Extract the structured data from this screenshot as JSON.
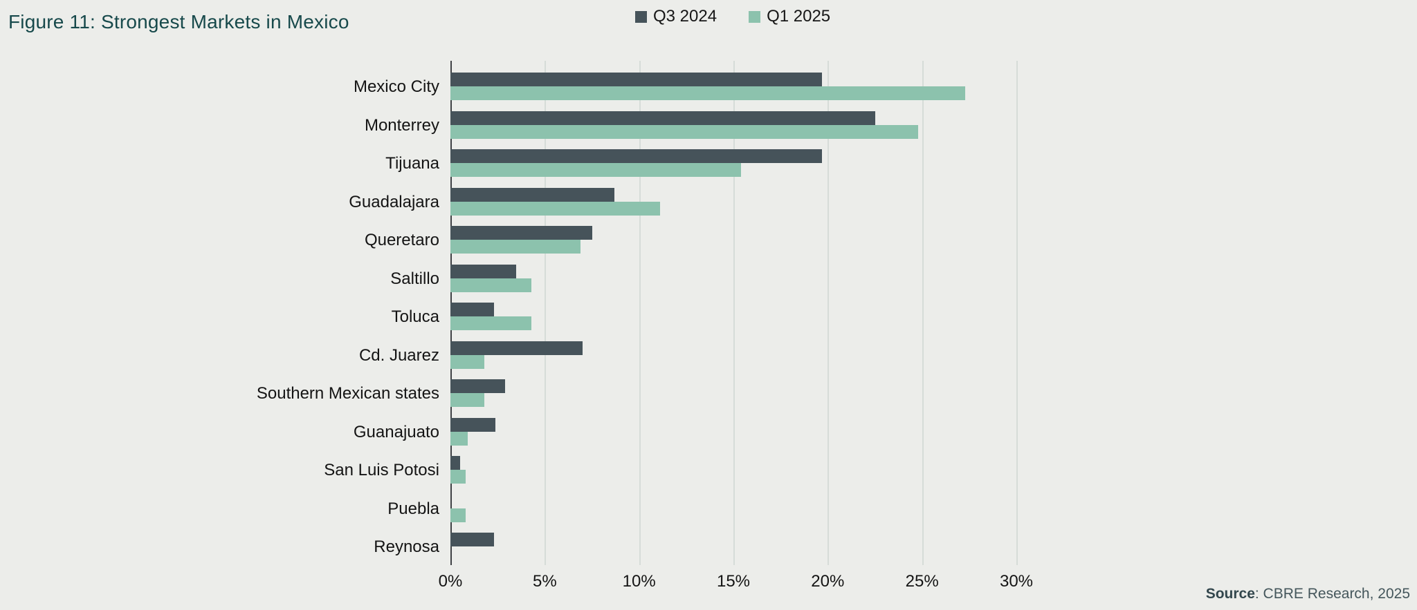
{
  "figure": {
    "title": "Figure 11: Strongest Markets in Mexico",
    "source_label": "Source",
    "source_text": ": CBRE Research, 2025"
  },
  "colors": {
    "background": "#ECEDEA",
    "title": "#17494B",
    "series_q3_2024": "#46535A",
    "series_q1_2025": "#8CC2AD",
    "gridline": "#D6DCD8",
    "axis": "#3F4245",
    "text": "#141414"
  },
  "chart_data": {
    "type": "bar",
    "orientation": "horizontal",
    "title": "Figure 11: Strongest Markets in Mexico",
    "xlabel": "",
    "ylabel": "",
    "xlim": [
      0,
      30
    ],
    "x_ticks": [
      "0%",
      "5%",
      "10%",
      "15%",
      "20%",
      "25%",
      "30%"
    ],
    "x_tick_values": [
      0,
      5,
      10,
      15,
      20,
      25,
      30
    ],
    "grid": "vertical",
    "legend_position": "top-center",
    "categories": [
      "Mexico City",
      "Monterrey",
      "Tijuana",
      "Guadalajara",
      "Queretaro",
      "Saltillo",
      "Toluca",
      "Cd. Juarez",
      "Southern Mexican states",
      "Guanajuato",
      "San Luis Potosi",
      "Puebla",
      "Reynosa"
    ],
    "series": [
      {
        "name": "Q3 2024",
        "color": "#46535A",
        "values": [
          19.7,
          22.5,
          19.7,
          8.7,
          7.5,
          3.5,
          2.3,
          7.0,
          2.9,
          2.4,
          0.5,
          0,
          2.3
        ]
      },
      {
        "name": "Q1 2025",
        "color": "#8CC2AD",
        "values": [
          27.3,
          24.8,
          15.4,
          11.1,
          6.9,
          4.3,
          4.3,
          1.8,
          1.8,
          0.9,
          0.8,
          0.8,
          0
        ]
      }
    ]
  }
}
